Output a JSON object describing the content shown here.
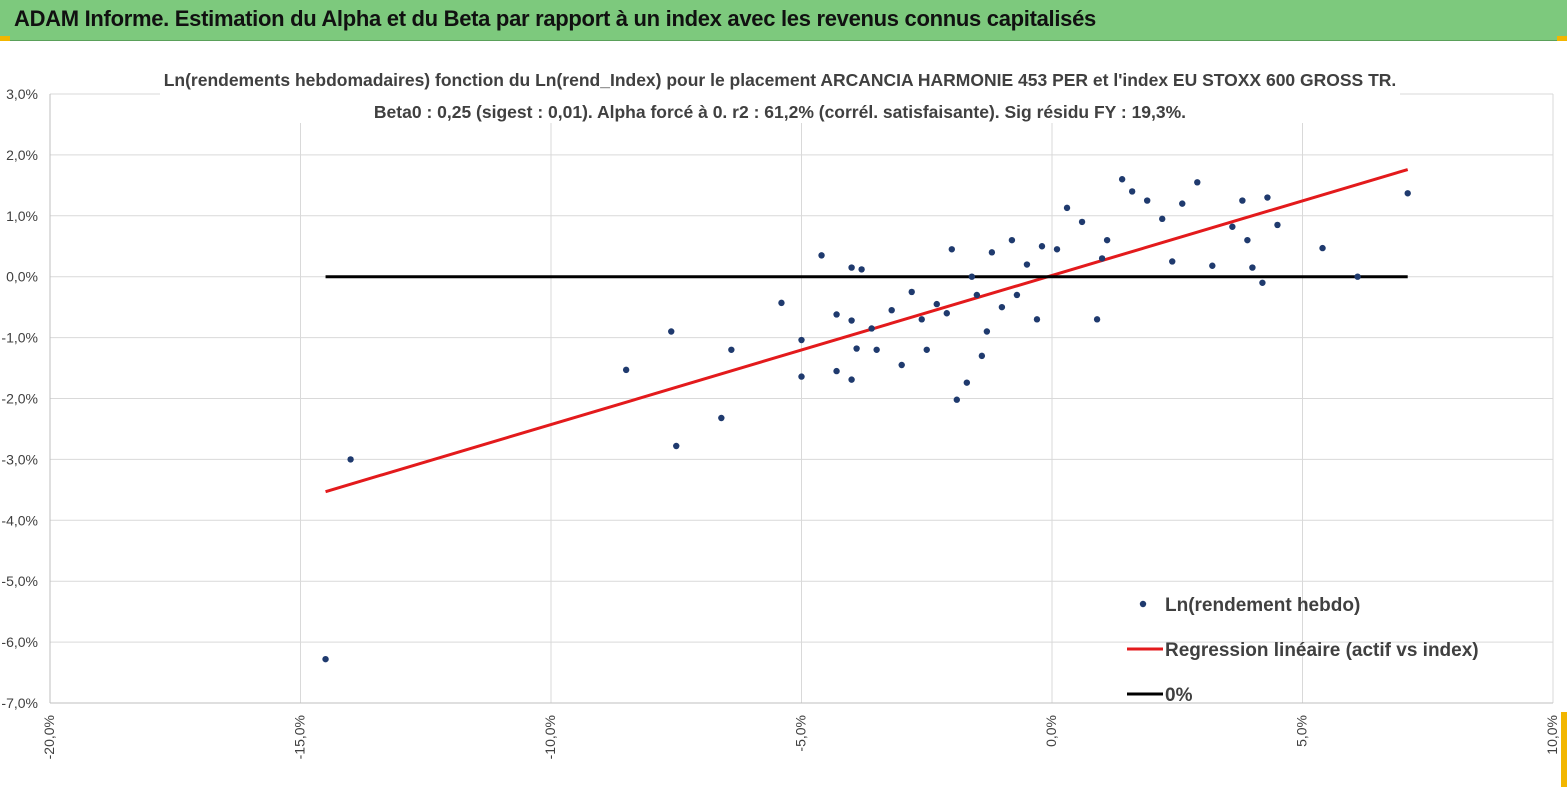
{
  "banner": {
    "title": "ADAM Informe. Estimation du Alpha et du Beta par rapport à un index avec les revenus connus capitalisés"
  },
  "colors": {
    "banner_bg": "#7dc97d",
    "scatter": "#1f3a6e",
    "regression": "#e31a1c",
    "zero_line": "#000000",
    "grid": "#d9d9d9",
    "corner_accent": "#f2b600"
  },
  "chart_data": {
    "type": "scatter",
    "title_line1": "Ln(rendements hebdomadaires) fonction du Ln(rend_Index) pour le placement ARCANCIA HARMONIE 453 PER et l'index EU STOXX 600 GROSS TR.",
    "title_line2": "Beta0 : 0,25  (sigest : 0,01).  Alpha forcé à 0. r2 : 61,2% (corrél. satisfaisante). Sig résidu FY : 19,3%.",
    "xlim": [
      -20,
      10
    ],
    "ylim": [
      -7,
      3
    ],
    "x_ticks": [
      -20,
      -15,
      -10,
      -5,
      0,
      5,
      10
    ],
    "y_ticks": [
      3,
      2,
      1,
      0,
      -1,
      -2,
      -3,
      -4,
      -5,
      -6,
      -7
    ],
    "x_tick_labels": [
      "-20,0%",
      "-15,0%",
      "-10,0%",
      "-5,0%",
      "0,0%",
      "5,0%",
      "10,0%"
    ],
    "y_tick_labels": [
      "3,0%",
      "2,0%",
      "1,0%",
      "0,0%",
      "-1,0%",
      "-2,0%",
      "-3,0%",
      "-4,0%",
      "-5,0%",
      "-6,0%",
      "-7,0%"
    ],
    "grid": "vertical",
    "legend": [
      {
        "label": "Ln(rendement hebdo)",
        "kind": "marker"
      },
      {
        "label": "Regression linéaire (actif vs index)",
        "kind": "line-red"
      },
      {
        "label": "0%",
        "kind": "line-black"
      }
    ],
    "legend_position": "bottom-right",
    "series": [
      {
        "name": "Ln(rendement hebdo)",
        "kind": "scatter",
        "points": [
          [
            -14.5,
            -6.28
          ],
          [
            -14.0,
            -3.0
          ],
          [
            -8.5,
            -1.53
          ],
          [
            -7.5,
            -2.78
          ],
          [
            -7.6,
            -0.9
          ],
          [
            -6.6,
            -2.32
          ],
          [
            -6.4,
            -1.2
          ],
          [
            -5.4,
            -0.43
          ],
          [
            -5.0,
            -1.04
          ],
          [
            -5.0,
            -1.64
          ],
          [
            -4.6,
            0.35
          ],
          [
            -4.3,
            -0.62
          ],
          [
            -4.3,
            -1.55
          ],
          [
            -4.0,
            -1.69
          ],
          [
            -4.0,
            -0.72
          ],
          [
            -3.9,
            -1.18
          ],
          [
            -3.8,
            0.12
          ],
          [
            -4.0,
            0.15
          ],
          [
            -3.6,
            -0.85
          ],
          [
            -3.5,
            -1.2
          ],
          [
            -3.2,
            -0.55
          ],
          [
            -3.0,
            -1.45
          ],
          [
            -2.8,
            -0.25
          ],
          [
            -2.6,
            -0.7
          ],
          [
            -2.5,
            -1.2
          ],
          [
            -2.3,
            -0.45
          ],
          [
            -2.1,
            -0.6
          ],
          [
            -2.0,
            0.45
          ],
          [
            -1.9,
            -2.02
          ],
          [
            -1.7,
            -1.74
          ],
          [
            -1.6,
            0.0
          ],
          [
            -1.5,
            -0.3
          ],
          [
            -1.4,
            -1.3
          ],
          [
            -1.3,
            -0.9
          ],
          [
            -1.2,
            0.4
          ],
          [
            -1.0,
            -0.5
          ],
          [
            -0.8,
            0.6
          ],
          [
            -0.7,
            -0.3
          ],
          [
            -0.5,
            0.2
          ],
          [
            -0.3,
            -0.7
          ],
          [
            -0.2,
            0.5
          ],
          [
            0.1,
            0.45
          ],
          [
            0.3,
            1.13
          ],
          [
            0.6,
            0.9
          ],
          [
            0.9,
            -0.7
          ],
          [
            1.1,
            0.6
          ],
          [
            1.4,
            1.6
          ],
          [
            1.6,
            1.4
          ],
          [
            1.9,
            1.25
          ],
          [
            2.2,
            0.95
          ],
          [
            2.6,
            1.2
          ],
          [
            2.9,
            1.55
          ],
          [
            3.2,
            0.18
          ],
          [
            3.6,
            0.82
          ],
          [
            3.8,
            1.25
          ],
          [
            4.0,
            0.15
          ],
          [
            4.2,
            -0.1
          ],
          [
            4.3,
            1.3
          ],
          [
            4.5,
            0.85
          ],
          [
            5.4,
            0.47
          ],
          [
            6.1,
            0.0
          ],
          [
            7.1,
            1.37
          ],
          [
            3.9,
            0.6
          ],
          [
            2.4,
            0.25
          ],
          [
            1.0,
            0.3
          ]
        ]
      },
      {
        "name": "Regression linéaire (actif vs index)",
        "kind": "line",
        "points": [
          [
            -14.5,
            -3.53
          ],
          [
            7.1,
            1.76
          ]
        ]
      },
      {
        "name": "0%",
        "kind": "line",
        "points": [
          [
            -14.5,
            0.0
          ],
          [
            7.1,
            0.0
          ]
        ]
      }
    ]
  }
}
